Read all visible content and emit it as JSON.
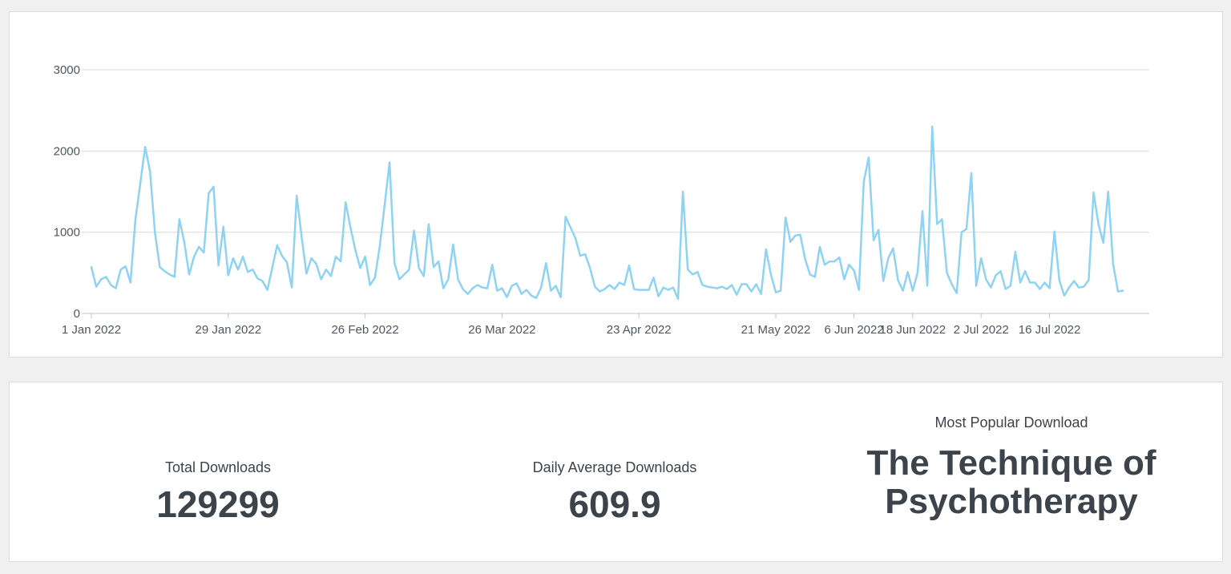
{
  "colors": {
    "line": "#8fd3f4",
    "grid": "#dcdcde",
    "axis": "#c3c4c7",
    "text": "#3c434a"
  },
  "chart_data": {
    "type": "line",
    "title": "",
    "xlabel": "",
    "ylabel": "",
    "ylim": [
      0,
      3000
    ],
    "yticks": [
      0,
      1000,
      2000,
      3000
    ],
    "xticks": [
      "1 Jan 2022",
      "29 Jan 2022",
      "26 Feb 2022",
      "26 Mar 2022",
      "23 Apr 2022",
      "21 May 2022",
      "6 Jun 2022",
      "18 Jun 2022",
      "2 Jul 2022",
      "16 Jul 2022"
    ],
    "grid": true,
    "legend": "none",
    "series": [
      {
        "values": [
          570,
          330,
          420,
          450,
          350,
          310,
          540,
          580,
          380,
          1150,
          1600,
          2050,
          1750,
          1000,
          570,
          520,
          480,
          450,
          1160,
          880,
          480,
          700,
          820,
          750,
          1480,
          1560,
          590,
          1070,
          470,
          680,
          540,
          700,
          510,
          540,
          430,
          400,
          290,
          560,
          840,
          710,
          630,
          320,
          1450,
          950,
          490,
          680,
          610,
          420,
          540,
          460,
          700,
          640,
          1370,
          1060,
          780,
          560,
          700,
          350,
          440,
          830,
          1340,
          1860,
          620,
          420,
          480,
          540,
          1020,
          560,
          460,
          1100,
          570,
          640,
          310,
          420,
          850,
          420,
          300,
          240,
          310,
          350,
          320,
          310,
          600,
          280,
          310,
          200,
          340,
          370,
          240,
          290,
          220,
          190,
          320,
          620,
          280,
          340,
          200,
          1190,
          1060,
          930,
          710,
          730,
          560,
          330,
          270,
          300,
          350,
          300,
          380,
          350,
          590,
          300,
          290,
          290,
          290,
          440,
          210,
          320,
          290,
          320,
          180,
          1500,
          540,
          480,
          510,
          350,
          330,
          320,
          310,
          330,
          300,
          350,
          230,
          360,
          360,
          270,
          360,
          240,
          790,
          480,
          260,
          280,
          1180,
          880,
          960,
          970,
          670,
          480,
          450,
          820,
          600,
          640,
          640,
          690,
          420,
          600,
          530,
          290,
          1620,
          1920,
          900,
          1030,
          400,
          680,
          800,
          410,
          280,
          510,
          280,
          500,
          1260,
          340,
          2300,
          1100,
          1160,
          500,
          360,
          250,
          1000,
          1040,
          1730,
          340,
          680,
          420,
          320,
          470,
          520,
          300,
          340,
          760,
          380,
          520,
          380,
          380,
          300,
          380,
          310,
          1010,
          410,
          220,
          320,
          400,
          320,
          330,
          410,
          1490,
          1100,
          870,
          1500,
          610,
          270,
          280
        ]
      }
    ]
  },
  "stats": {
    "total": {
      "label": "Total Downloads",
      "value": "129299"
    },
    "average": {
      "label": "Daily Average Downloads",
      "value": "609.9"
    },
    "popular": {
      "label": "Most Popular Download",
      "value": "The Technique of Psychotherapy"
    }
  }
}
